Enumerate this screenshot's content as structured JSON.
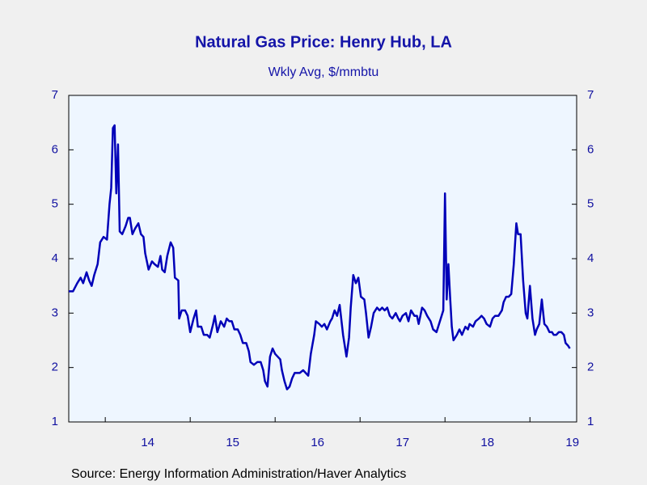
{
  "chart_data": {
    "type": "line",
    "title": "Natural Gas Price: Henry Hub, LA",
    "subtitle": "Wkly Avg, $/mmbtu",
    "source": "Source:  Energy Information Administration/Haver Analytics",
    "xlim": [
      2013.57,
      2019.55
    ],
    "xticks": [
      {
        "value": 2014,
        "label": "14"
      },
      {
        "value": 2015,
        "label": "15"
      },
      {
        "value": 2016,
        "label": "16"
      },
      {
        "value": 2017,
        "label": "17"
      },
      {
        "value": 2018,
        "label": "18"
      },
      {
        "value": 2019,
        "label": "19"
      }
    ],
    "ylim": [
      1,
      7
    ],
    "yticks": [
      1,
      2,
      3,
      4,
      5,
      6,
      7
    ],
    "y2lim": [
      1,
      7
    ],
    "y2ticks": [
      1,
      2,
      3,
      4,
      5,
      6,
      7
    ],
    "x": [
      2013.57,
      2013.62,
      2013.67,
      2013.71,
      2013.74,
      2013.78,
      2013.81,
      2013.84,
      2013.87,
      2013.91,
      2013.94,
      2013.98,
      2014.02,
      2014.05,
      2014.07,
      2014.09,
      2014.11,
      2014.13,
      2014.15,
      2014.17,
      2014.2,
      2014.24,
      2014.27,
      2014.29,
      2014.32,
      2014.35,
      2014.39,
      2014.42,
      2014.45,
      2014.47,
      2014.51,
      2014.55,
      2014.58,
      2014.62,
      2014.65,
      2014.67,
      2014.7,
      2014.73,
      2014.77,
      2014.8,
      2014.82,
      2014.86,
      2014.87,
      2014.9,
      2014.94,
      2014.97,
      2015.0,
      2015.04,
      2015.07,
      2015.09,
      2015.13,
      2015.16,
      2015.2,
      2015.23,
      2015.27,
      2015.29,
      2015.32,
      2015.36,
      2015.4,
      2015.43,
      2015.46,
      2015.49,
      2015.52,
      2015.56,
      2015.59,
      2015.62,
      2015.66,
      2015.69,
      2015.71,
      2015.75,
      2015.79,
      2015.83,
      2015.86,
      2015.88,
      2015.91,
      2015.94,
      2015.97,
      2016.0,
      2016.03,
      2016.06,
      2016.08,
      2016.11,
      2016.14,
      2016.17,
      2016.2,
      2016.23,
      2016.27,
      2016.29,
      2016.33,
      2016.36,
      2016.39,
      2016.42,
      2016.46,
      2016.48,
      2016.52,
      2016.55,
      2016.58,
      2016.61,
      2016.65,
      2016.67,
      2016.7,
      2016.73,
      2016.76,
      2016.8,
      2016.84,
      2016.87,
      2016.89,
      2016.92,
      2016.95,
      2016.98,
      2017.01,
      2017.05,
      2017.07,
      2017.1,
      2017.13,
      2017.16,
      2017.2,
      2017.23,
      2017.26,
      2017.29,
      2017.32,
      2017.35,
      2017.38,
      2017.42,
      2017.45,
      2017.47,
      2017.5,
      2017.54,
      2017.57,
      2017.6,
      2017.64,
      2017.67,
      2017.69,
      2017.73,
      2017.76,
      2017.79,
      2017.83,
      2017.86,
      2017.9,
      2017.95,
      2017.98,
      2018.0,
      2018.02,
      2018.04,
      2018.06,
      2018.08,
      2018.1,
      2018.14,
      2018.17,
      2018.2,
      2018.24,
      2018.27,
      2018.29,
      2018.33,
      2018.36,
      2018.4,
      2018.43,
      2018.46,
      2018.49,
      2018.53,
      2018.56,
      2018.59,
      2018.63,
      2018.67,
      2018.69,
      2018.72,
      2018.75,
      2018.78,
      2018.81,
      2018.84,
      2018.86,
      2018.89,
      2018.92,
      2018.95,
      2018.97,
      2019.0,
      2019.03,
      2019.06,
      2019.08,
      2019.11,
      2019.14,
      2019.17,
      2019.2,
      2019.23,
      2019.26,
      2019.28,
      2019.31,
      2019.34,
      2019.37,
      2019.4,
      2019.42,
      2019.45,
      2019.47
    ],
    "series": [
      {
        "color": "#0000b8",
        "values": [
          3.4,
          3.4,
          3.55,
          3.65,
          3.55,
          3.75,
          3.6,
          3.5,
          3.7,
          3.9,
          4.3,
          4.4,
          4.35,
          5.0,
          5.3,
          6.4,
          6.45,
          5.2,
          6.1,
          4.5,
          4.45,
          4.6,
          4.75,
          4.75,
          4.45,
          4.55,
          4.65,
          4.45,
          4.4,
          4.1,
          3.8,
          3.95,
          3.9,
          3.85,
          4.05,
          3.8,
          3.75,
          4.05,
          4.3,
          4.2,
          3.65,
          3.6,
          2.9,
          3.05,
          3.05,
          2.95,
          2.65,
          2.9,
          3.05,
          2.75,
          2.75,
          2.6,
          2.6,
          2.55,
          2.8,
          2.95,
          2.65,
          2.85,
          2.75,
          2.9,
          2.85,
          2.85,
          2.7,
          2.7,
          2.6,
          2.45,
          2.45,
          2.3,
          2.1,
          2.05,
          2.1,
          2.1,
          1.95,
          1.75,
          1.65,
          2.2,
          2.35,
          2.25,
          2.2,
          2.15,
          1.95,
          1.75,
          1.6,
          1.65,
          1.8,
          1.9,
          1.9,
          1.9,
          1.95,
          1.9,
          1.85,
          2.25,
          2.6,
          2.85,
          2.8,
          2.75,
          2.8,
          2.7,
          2.85,
          2.9,
          3.05,
          2.95,
          3.15,
          2.6,
          2.2,
          2.55,
          3.1,
          3.7,
          3.55,
          3.65,
          3.3,
          3.25,
          3.0,
          2.55,
          2.75,
          3.0,
          3.1,
          3.05,
          3.1,
          3.05,
          3.1,
          2.95,
          2.9,
          3.0,
          2.9,
          2.85,
          2.95,
          3.0,
          2.85,
          3.05,
          2.95,
          2.95,
          2.8,
          3.1,
          3.05,
          2.95,
          2.85,
          2.7,
          2.65,
          2.9,
          3.05,
          5.2,
          3.25,
          3.9,
          3.3,
          2.75,
          2.5,
          2.6,
          2.7,
          2.6,
          2.75,
          2.7,
          2.8,
          2.75,
          2.85,
          2.9,
          2.95,
          2.9,
          2.8,
          2.75,
          2.9,
          2.95,
          2.95,
          3.05,
          3.2,
          3.3,
          3.3,
          3.35,
          3.9,
          4.65,
          4.45,
          4.45,
          3.6,
          3.0,
          2.9,
          3.5,
          2.9,
          2.6,
          2.7,
          2.8,
          3.25,
          2.8,
          2.75,
          2.65,
          2.65,
          2.6,
          2.6,
          2.65,
          2.65,
          2.6,
          2.45,
          2.4,
          2.35
        ]
      }
    ]
  }
}
